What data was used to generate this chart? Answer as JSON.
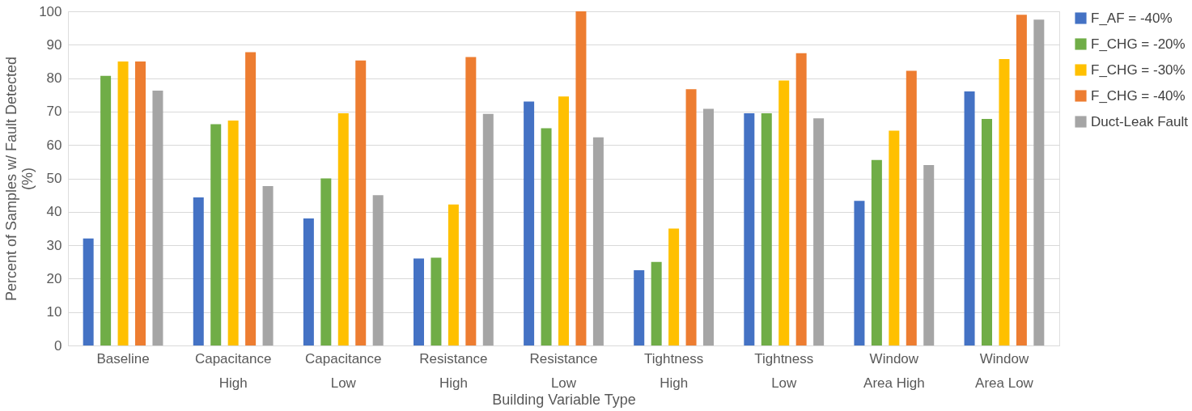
{
  "chart_data": {
    "type": "bar",
    "xlabel": "Building Variable Type",
    "ylabel": "Percent of Samples w/ Fault Detected (%)",
    "categories": [
      "Baseline",
      "Capacitance High",
      "Capacitance Low",
      "Resistance High",
      "Resistance Low",
      "Tightness High",
      "Tightness Low",
      "Window Area High",
      "Window Area Low"
    ],
    "series": [
      {
        "name": "F_AF = -40%",
        "color": "#4472c4",
        "values": [
          32,
          44.3,
          38,
          26,
          73,
          22.5,
          69.5,
          43.3,
          76
        ]
      },
      {
        "name": "F_CHG = -20%",
        "color": "#70ad47",
        "values": [
          80.7,
          66.2,
          50,
          26.3,
          65,
          25,
          69.5,
          55.5,
          67.8
        ]
      },
      {
        "name": "F_CHG = -30%",
        "color": "#ffc000",
        "values": [
          85,
          67.3,
          69.5,
          42.2,
          74.5,
          35,
          79.3,
          64.3,
          85.7
        ]
      },
      {
        "name": "F_CHG = -40%",
        "color": "#ed7d31",
        "values": [
          85,
          87.8,
          85.3,
          86.3,
          100,
          76.7,
          87.5,
          82.2,
          99
        ]
      },
      {
        "name": "Duct-Leak Fault",
        "color": "#a5a5a5",
        "values": [
          76.3,
          47.7,
          45,
          69.3,
          62.3,
          70.8,
          68,
          54,
          97.5
        ]
      }
    ],
    "ylim": [
      0,
      100
    ],
    "yticks": [
      0,
      10,
      20,
      30,
      40,
      50,
      60,
      70,
      80,
      90,
      100
    ],
    "grid": "y",
    "legend": "right"
  }
}
